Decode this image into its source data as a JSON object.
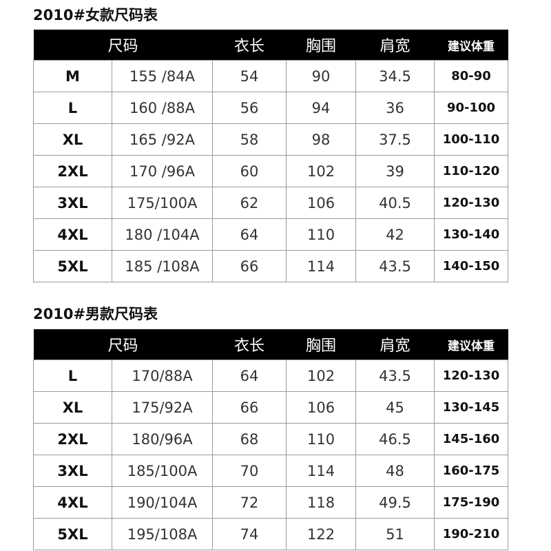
{
  "women": {
    "title": "2010#女款尺码表",
    "headers": [
      "尺码",
      "衣长",
      "胸围",
      "肩宽",
      "建议体重"
    ],
    "rows": [
      [
        "M",
        "155 /84A",
        "54",
        "90",
        "34.5",
        "80-90"
      ],
      [
        "L",
        "160 /88A",
        "56",
        "94",
        "36",
        "90-100"
      ],
      [
        "XL",
        "165 /92A",
        "58",
        "98",
        "37.5",
        "100-110"
      ],
      [
        "2XL",
        "170 /96A",
        "60",
        "102",
        "39",
        "110-120"
      ],
      [
        "3XL",
        "175/100A",
        "62",
        "106",
        "40.5",
        "120-130"
      ],
      [
        "4XL",
        "180 /104A",
        "64",
        "110",
        "42",
        "130-140"
      ],
      [
        "5XL",
        "185 /108A",
        "66",
        "114",
        "43.5",
        "140-150"
      ]
    ]
  },
  "men": {
    "title": "2010#男款尺码表",
    "headers": [
      "尺码",
      "衣长",
      "胸围",
      "肩宽",
      "建议体重"
    ],
    "rows": [
      [
        "L",
        "170/88A",
        "64",
        "102",
        "43.5",
        "120-130"
      ],
      [
        "XL",
        "175/92A",
        "66",
        "106",
        "45",
        "130-145"
      ],
      [
        "2XL",
        "180/96A",
        "68",
        "110",
        "46.5",
        "145-160"
      ],
      [
        "3XL",
        "185/100A",
        "70",
        "114",
        "48",
        "160-175"
      ],
      [
        "4XL",
        "190/104A",
        "72",
        "118",
        "49.5",
        "175-190"
      ],
      [
        "5XL",
        "195/108A",
        "74",
        "122",
        "51",
        "190-210"
      ]
    ]
  }
}
